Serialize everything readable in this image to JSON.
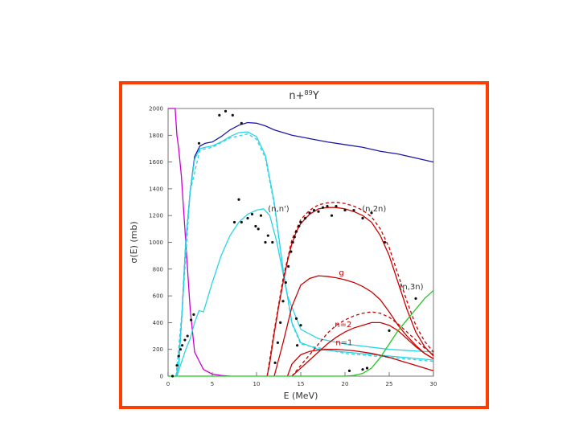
{
  "frame": {
    "border_color": "#ff3d00"
  },
  "chart_data": {
    "type": "line",
    "title": "n+⁸⁹Y",
    "title_main": "n+",
    "title_sup": "89",
    "title_tail": "Y",
    "xlabel": "E (MeV)",
    "ylabel": "σ(E) (mb)",
    "xlim": [
      0,
      30
    ],
    "ylim": [
      0,
      2000
    ],
    "xticks": [
      0,
      5,
      10,
      15,
      20,
      25,
      30
    ],
    "yticks": [
      0,
      200,
      400,
      600,
      800,
      1000,
      1200,
      1400,
      1600,
      1800,
      2000
    ],
    "grid": false,
    "annotations": [
      {
        "text": "(n,n')",
        "x": 12.5,
        "y": 1230,
        "color": "#333333"
      },
      {
        "text": "(n,2n)",
        "x": 23.3,
        "y": 1230,
        "color": "#333333"
      },
      {
        "text": "(n,3n)",
        "x": 27.5,
        "y": 650,
        "color": "#333333"
      },
      {
        "text": "g",
        "x": 19.6,
        "y": 755,
        "color": "#cc0000"
      },
      {
        "text": "n=2",
        "x": 19.8,
        "y": 365,
        "color": "#cc0000"
      },
      {
        "text": "n=1",
        "x": 19.9,
        "y": 230,
        "color": "#cc0000"
      }
    ],
    "series": [
      {
        "color": "#1a1aa8",
        "dash": "",
        "x": [
          0.9,
          1.2,
          1.6,
          2.0,
          2.5,
          3.0,
          3.6,
          4.2,
          5.0,
          6.0,
          7.0,
          8.0,
          9.0,
          10.0,
          11.0,
          12.0,
          14.0,
          16.0,
          18.0,
          20.0,
          22.0,
          24.0,
          26.0,
          28.0,
          30.0
        ],
        "y": [
          0,
          80,
          500,
          1000,
          1380,
          1640,
          1720,
          1740,
          1750,
          1790,
          1840,
          1875,
          1895,
          1890,
          1870,
          1840,
          1800,
          1775,
          1750,
          1730,
          1710,
          1680,
          1660,
          1630,
          1600
        ]
      },
      {
        "color": "#cc00cc",
        "dash": "",
        "x": [
          0.0,
          0.5,
          0.8,
          1.0,
          1.2,
          1.5,
          2.0,
          2.5,
          3.0,
          4.0,
          5.0,
          6.0,
          7.0
        ],
        "y": [
          2000,
          2000,
          2000,
          1800,
          1700,
          1500,
          1000,
          500,
          180,
          50,
          15,
          5,
          0
        ]
      },
      {
        "color": "#2ad4e6",
        "dash": "",
        "x": [
          0.9,
          1.2,
          1.6,
          2.0,
          2.5,
          3.0,
          3.6,
          4.2,
          5.0,
          6.0,
          7.0,
          8.0,
          9.0,
          10.0,
          11.0,
          12.0,
          13.0,
          14.0,
          15.0,
          17.0,
          20.0,
          25.0,
          30.0
        ],
        "y": [
          0,
          80,
          500,
          1000,
          1380,
          1620,
          1700,
          1710,
          1720,
          1750,
          1790,
          1820,
          1825,
          1790,
          1650,
          1300,
          800,
          400,
          250,
          200,
          180,
          150,
          120
        ]
      },
      {
        "color": "#2ad4e6",
        "dash": "",
        "x": [
          1.0,
          1.5,
          2.0,
          2.5,
          3.0,
          3.5,
          4.0,
          5.0,
          6.0,
          7.0,
          8.0,
          9.0,
          10.0,
          10.8,
          11.5,
          12.3,
          13.5,
          15.0,
          17.0,
          20.0,
          25.0,
          30.0
        ],
        "y": [
          0,
          100,
          200,
          280,
          400,
          490,
          480,
          700,
          900,
          1050,
          1150,
          1210,
          1240,
          1250,
          1200,
          1000,
          600,
          350,
          280,
          240,
          200,
          180
        ]
      },
      {
        "color": "#2ad4e6",
        "dash": "4,3",
        "x": [
          0.9,
          1.6,
          2.5,
          3.6,
          5.0,
          7.0,
          9.0,
          10.0,
          11.0,
          12.0,
          13.0,
          14.0,
          15.0,
          20.0,
          30.0
        ],
        "y": [
          0,
          500,
          1380,
          1690,
          1710,
          1780,
          1810,
          1770,
          1630,
          1280,
          790,
          390,
          240,
          170,
          110
        ]
      },
      {
        "color": "#cc0000",
        "dash": "",
        "x": [
          11.2,
          11.5,
          12.0,
          12.5,
          13.0,
          13.5,
          14.0,
          14.5,
          15.0,
          16.0,
          17.0,
          18.0,
          19.0,
          20.0,
          21.0,
          22.0,
          23.0,
          24.0,
          25.0,
          26.0,
          27.0,
          28.0,
          29.0,
          30.0
        ],
        "y": [
          0,
          100,
          320,
          520,
          700,
          860,
          990,
          1080,
          1140,
          1210,
          1250,
          1260,
          1260,
          1250,
          1230,
          1200,
          1150,
          1050,
          900,
          700,
          500,
          330,
          220,
          150
        ]
      },
      {
        "color": "#cc0000",
        "dash": "4,3",
        "x": [
          11.2,
          12.0,
          13.0,
          14.0,
          15.0,
          16.0,
          17.0,
          18.0,
          19.0,
          20.0,
          21.0,
          22.0,
          23.0,
          24.0,
          25.0,
          26.0,
          27.0,
          28.0,
          29.0,
          30.0
        ],
        "y": [
          0,
          340,
          730,
          1020,
          1170,
          1240,
          1280,
          1295,
          1300,
          1290,
          1270,
          1240,
          1190,
          1100,
          960,
          760,
          560,
          380,
          260,
          180
        ]
      },
      {
        "color": "#cc0000",
        "dash": "",
        "x": [
          12.0,
          13.0,
          14.0,
          15.0,
          16.0,
          17.0,
          18.0,
          19.0,
          20.0,
          21.0,
          22.0,
          23.0,
          24.0,
          25.0,
          26.0,
          27.0,
          28.0,
          29.0,
          30.0
        ],
        "y": [
          0,
          250,
          520,
          680,
          730,
          750,
          745,
          735,
          720,
          700,
          670,
          630,
          570,
          480,
          380,
          300,
          230,
          170,
          130
        ]
      },
      {
        "color": "#cc0000",
        "dash": "",
        "x": [
          14.0,
          15.0,
          16.0,
          17.0,
          18.0,
          19.0,
          20.0,
          21.0,
          22.0,
          23.0,
          24.0,
          25.0,
          26.0,
          27.0,
          28.0,
          29.0,
          30.0
        ],
        "y": [
          0,
          60,
          120,
          180,
          240,
          290,
          330,
          360,
          380,
          400,
          400,
          380,
          340,
          280,
          220,
          170,
          130
        ]
      },
      {
        "color": "#cc0000",
        "dash": "4,3",
        "x": [
          14.0,
          15.0,
          16.0,
          17.0,
          18.0,
          19.0,
          20.0,
          21.0,
          22.0,
          23.0,
          24.0,
          25.0,
          26.0,
          27.0,
          28.0,
          29.0,
          30.0
        ],
        "y": [
          0,
          80,
          160,
          240,
          320,
          380,
          420,
          450,
          470,
          480,
          470,
          440,
          390,
          330,
          270,
          210,
          160
        ]
      },
      {
        "color": "#cc0000",
        "dash": "",
        "x": [
          13.5,
          14.0,
          15.0,
          16.0,
          17.0,
          18.0,
          19.0,
          20.0,
          21.0,
          22.0,
          23.0,
          24.0,
          25.0,
          26.0,
          27.0,
          28.0,
          29.0,
          30.0
        ],
        "y": [
          0,
          90,
          160,
          185,
          195,
          200,
          200,
          195,
          190,
          180,
          170,
          155,
          140,
          120,
          100,
          80,
          60,
          40
        ]
      },
      {
        "color": "#22c722",
        "dash": "",
        "x": [
          0.0,
          5.0,
          10.0,
          15.0,
          20.0,
          21.0,
          22.0,
          23.0,
          24.0,
          25.0,
          26.0,
          27.0,
          28.0,
          29.0,
          30.0
        ],
        "y": [
          0,
          0,
          0,
          0,
          0,
          5,
          20,
          60,
          140,
          240,
          340,
          420,
          500,
          580,
          640
        ]
      }
    ],
    "points": [
      {
        "x": 0.5,
        "y": 0
      },
      {
        "x": 1.0,
        "y": 80
      },
      {
        "x": 1.2,
        "y": 150
      },
      {
        "x": 1.4,
        "y": 200
      },
      {
        "x": 1.6,
        "y": 230
      },
      {
        "x": 1.9,
        "y": 270
      },
      {
        "x": 2.2,
        "y": 300
      },
      {
        "x": 2.6,
        "y": 420
      },
      {
        "x": 2.9,
        "y": 460
      },
      {
        "x": 3.5,
        "y": 1740
      },
      {
        "x": 5.8,
        "y": 1950
      },
      {
        "x": 6.5,
        "y": 1980
      },
      {
        "x": 7.3,
        "y": 1950
      },
      {
        "x": 8.3,
        "y": 1890
      },
      {
        "x": 7.5,
        "y": 1150
      },
      {
        "x": 8.0,
        "y": 1320
      },
      {
        "x": 8.3,
        "y": 1150
      },
      {
        "x": 9.0,
        "y": 1180
      },
      {
        "x": 9.5,
        "y": 1210
      },
      {
        "x": 9.9,
        "y": 1120
      },
      {
        "x": 10.2,
        "y": 1100
      },
      {
        "x": 10.5,
        "y": 1200
      },
      {
        "x": 11.0,
        "y": 1000
      },
      {
        "x": 11.3,
        "y": 1050
      },
      {
        "x": 11.8,
        "y": 1000
      },
      {
        "x": 12.1,
        "y": 100
      },
      {
        "x": 12.4,
        "y": 250
      },
      {
        "x": 12.7,
        "y": 400
      },
      {
        "x": 13.0,
        "y": 560
      },
      {
        "x": 13.3,
        "y": 700
      },
      {
        "x": 13.6,
        "y": 820
      },
      {
        "x": 13.9,
        "y": 930
      },
      {
        "x": 14.1,
        "y": 1000
      },
      {
        "x": 14.3,
        "y": 1040
      },
      {
        "x": 14.5,
        "y": 1080
      },
      {
        "x": 14.8,
        "y": 1120
      },
      {
        "x": 15.0,
        "y": 1150
      },
      {
        "x": 15.5,
        "y": 1180
      },
      {
        "x": 16.0,
        "y": 1220
      },
      {
        "x": 16.5,
        "y": 1240
      },
      {
        "x": 17.0,
        "y": 1230
      },
      {
        "x": 17.5,
        "y": 1260
      },
      {
        "x": 18.0,
        "y": 1270
      },
      {
        "x": 18.5,
        "y": 1200
      },
      {
        "x": 19.0,
        "y": 1270
      },
      {
        "x": 20.0,
        "y": 1240
      },
      {
        "x": 21.0,
        "y": 1240
      },
      {
        "x": 22.0,
        "y": 1180
      },
      {
        "x": 23.0,
        "y": 1220
      },
      {
        "x": 24.5,
        "y": 1000
      },
      {
        "x": 14.5,
        "y": 430
      },
      {
        "x": 15.0,
        "y": 380
      },
      {
        "x": 14.6,
        "y": 230
      },
      {
        "x": 20.5,
        "y": 40
      },
      {
        "x": 22.0,
        "y": 50
      },
      {
        "x": 22.5,
        "y": 60
      },
      {
        "x": 25.0,
        "y": 340
      },
      {
        "x": 28.0,
        "y": 580
      }
    ]
  }
}
